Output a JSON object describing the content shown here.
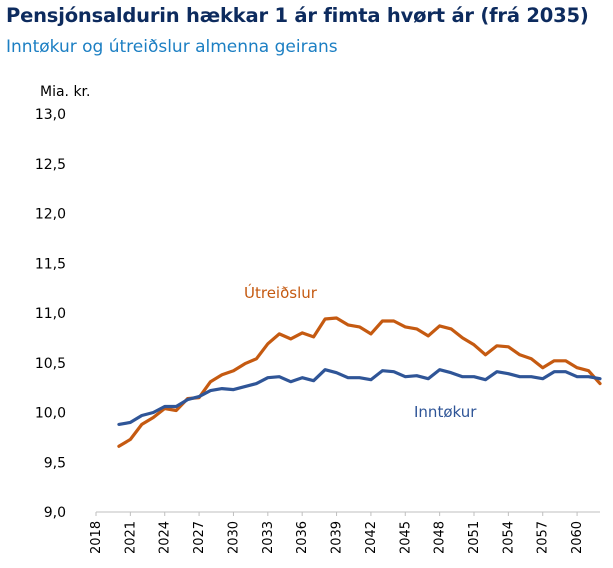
{
  "chart_data": {
    "type": "line",
    "title": "Pensjónsaldurin hækkar 1 ár fimta hvørt ár (frá 2035)",
    "subtitle": "Inntøkur og útreiðslur almenna geirans",
    "ylabel": "Mia. kr.",
    "ylim": [
      9.0,
      13.0
    ],
    "yticks": [
      "9,0",
      "9,5",
      "10,0",
      "10,5",
      "11,0",
      "11,5",
      "12,0",
      "12,5",
      "13,0"
    ],
    "xlim": [
      2018,
      2062
    ],
    "xticks": [
      "2018",
      "2021",
      "2024",
      "2027",
      "2030",
      "2033",
      "2036",
      "2039",
      "2042",
      "2045",
      "2048",
      "2051",
      "2054",
      "2057",
      "2060"
    ],
    "grid": false,
    "x": [
      2020,
      2021,
      2022,
      2023,
      2024,
      2025,
      2026,
      2027,
      2028,
      2029,
      2030,
      2031,
      2032,
      2033,
      2034,
      2035,
      2036,
      2037,
      2038,
      2039,
      2040,
      2041,
      2042,
      2043,
      2044,
      2045,
      2046,
      2047,
      2048,
      2049,
      2050,
      2051,
      2052,
      2053,
      2054,
      2055,
      2056,
      2057,
      2058,
      2059,
      2060,
      2061,
      2062
    ],
    "series": [
      {
        "name": "Útreiðslur",
        "color": "#c55a11",
        "values": [
          9.66,
          9.73,
          9.88,
          9.95,
          10.04,
          10.02,
          10.14,
          10.15,
          10.31,
          10.38,
          10.42,
          10.49,
          10.54,
          10.69,
          10.79,
          10.74,
          10.8,
          10.76,
          10.94,
          10.95,
          10.88,
          10.86,
          10.79,
          10.92,
          10.92,
          10.86,
          10.84,
          10.77,
          10.87,
          10.84,
          10.75,
          10.68,
          10.58,
          10.67,
          10.66,
          10.58,
          10.54,
          10.45,
          10.52,
          10.52,
          10.45,
          10.42,
          10.29
        ]
      },
      {
        "name": "Inntøkur",
        "color": "#2f5597",
        "values": [
          9.88,
          9.9,
          9.97,
          10.0,
          10.06,
          10.06,
          10.13,
          10.16,
          10.22,
          10.24,
          10.23,
          10.26,
          10.29,
          10.35,
          10.36,
          10.31,
          10.35,
          10.32,
          10.43,
          10.4,
          10.35,
          10.35,
          10.33,
          10.42,
          10.41,
          10.36,
          10.37,
          10.34,
          10.43,
          10.4,
          10.36,
          10.36,
          10.33,
          10.41,
          10.39,
          10.36,
          10.36,
          10.34,
          10.41,
          10.41,
          10.36,
          10.36,
          10.34
        ]
      }
    ]
  }
}
